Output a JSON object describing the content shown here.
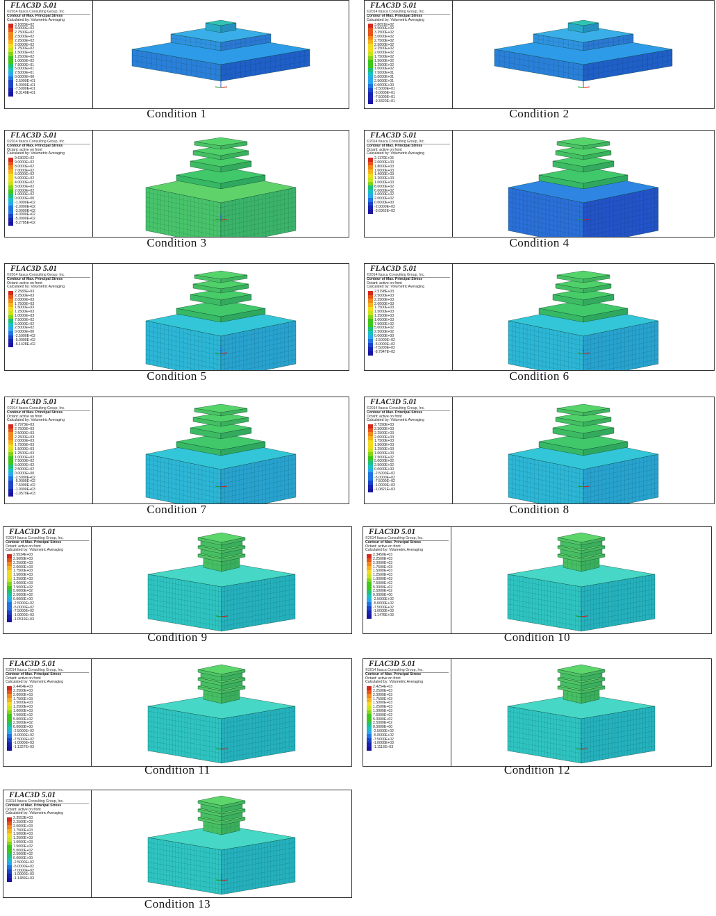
{
  "software_title": "FLAC3D 5.01",
  "copyright": "©2014 Itasca Consulting Group, Inc.",
  "contour_label": "Contour of Max. Principal Stress",
  "octant_label": "Octant: active on front",
  "averaging_label": "Calculated by: Volumetric Averaging",
  "colors": {
    "palette": [
      "#d42a1e",
      "#e8541a",
      "#f2891c",
      "#f7b21d",
      "#f2dc22",
      "#c8e41f",
      "#84d51d",
      "#3fc81c",
      "#1ec27a",
      "#19c0c4",
      "#2aa8ef",
      "#2274e2",
      "#1c43c8",
      "#1a22b0",
      "#1a14a0"
    ],
    "model_types": {
      "flat": "two-step podium model",
      "mid": "stepped excavation block with upper floors",
      "tall": "multi-storey frame on deep foundation block"
    }
  },
  "panels": [
    {
      "caption": "Condition 1",
      "model": "flat",
      "show_octant": false,
      "legend": [
        "3.1083E+02",
        "3.0000E+02",
        "2.7500E+02",
        "2.5000E+02",
        "2.2500E+02",
        "2.0000E+02",
        "1.7500E+02",
        "1.5000E+02",
        "1.2500E+02",
        "1.0000E+02",
        "7.5000E+01",
        "5.0000E+01",
        "2.5000E+01",
        "0.0000E+00",
        "-2.5000E+01",
        "-5.0000E+01",
        "-7.5000E+01",
        "-9.3140E+01"
      ]
    },
    {
      "caption": "Condition 2",
      "model": "flat",
      "show_octant": false,
      "legend": [
        "3.8091E+02",
        "3.5000E+02",
        "3.2500E+02",
        "3.0000E+02",
        "2.7500E+02",
        "2.5000E+02",
        "2.2500E+02",
        "2.0000E+02",
        "1.7500E+02",
        "1.5000E+02",
        "1.2500E+02",
        "1.0000E+02",
        "7.5000E+01",
        "5.0000E+01",
        "2.5000E+01",
        "0.0000E+00",
        "-2.5000E+01",
        "-5.0000E+01",
        "-7.5000E+01",
        "-9.3320E+01"
      ]
    },
    {
      "caption": "Condition 3",
      "model": "mid",
      "show_octant": true,
      "legend": [
        "9.6302E+02",
        "9.0000E+02",
        "8.0000E+02",
        "7.0000E+02",
        "6.0000E+02",
        "5.0000E+02",
        "4.0000E+02",
        "3.0000E+02",
        "2.0000E+02",
        "1.0000E+02",
        "0.0000E+00",
        "-1.0000E+02",
        "-2.0000E+02",
        "-3.0000E+02",
        "-4.0000E+02",
        "-5.0000E+02",
        "-5.2785E+02"
      ]
    },
    {
      "caption": "Condition 4",
      "model": "mid",
      "show_octant": true,
      "legend": [
        "2.1170E+03",
        "2.0000E+03",
        "1.8000E+03",
        "1.6000E+03",
        "1.4000E+03",
        "1.2000E+03",
        "1.0000E+03",
        "8.0000E+02",
        "6.0000E+02",
        "4.0000E+02",
        "2.0000E+02",
        "0.0000E+00",
        "-2.0000E+02",
        "-3.6962E+02"
      ]
    },
    {
      "caption": "Condition 5",
      "model": "mid",
      "show_octant": true,
      "legend": [
        "2.2583E+03",
        "2.2500E+03",
        "2.0000E+03",
        "1.7500E+03",
        "1.5000E+03",
        "1.2500E+03",
        "1.0000E+03",
        "7.5000E+02",
        "5.0000E+02",
        "2.5000E+02",
        "0.0000E+00",
        "-2.5000E+02",
        "-5.0000E+02",
        "-6.1428E+02"
      ]
    },
    {
      "caption": "Condition 6",
      "model": "mid",
      "show_octant": true,
      "legend": [
        "2.5198E+03",
        "2.5000E+03",
        "2.2500E+03",
        "2.0000E+03",
        "1.7500E+03",
        "1.5000E+03",
        "1.2500E+03",
        "1.0000E+03",
        "7.5000E+02",
        "5.0000E+02",
        "2.5000E+02",
        "0.0000E+00",
        "-2.5000E+02",
        "-5.0000E+02",
        "-7.5000E+02",
        "-8.7947E+02"
      ]
    },
    {
      "caption": "Condition 7",
      "model": "mid",
      "show_octant": true,
      "legend": [
        "2.7973E+03",
        "2.7500E+03",
        "2.5000E+03",
        "2.2500E+03",
        "2.0000E+03",
        "1.7500E+03",
        "1.5000E+03",
        "1.2500E+03",
        "1.0000E+03",
        "7.5000E+02",
        "5.0000E+02",
        "2.5000E+02",
        "0.0000E+00",
        "-2.5000E+02",
        "-5.0000E+02",
        "-7.5000E+02",
        "-1.0000E+03",
        "-1.0579E+03"
      ]
    },
    {
      "caption": "Condition 8",
      "model": "mid",
      "show_octant": true,
      "legend": [
        "2.7390E+03",
        "2.5000E+03",
        "2.2500E+03",
        "2.0000E+03",
        "1.7500E+03",
        "1.5000E+03",
        "1.2500E+03",
        "1.0000E+03",
        "7.5000E+02",
        "5.0000E+02",
        "2.5000E+02",
        "0.0000E+00",
        "-2.5000E+02",
        "-5.0000E+02",
        "-7.5000E+02",
        "-1.0000E+03",
        "-1.0821E+03"
      ]
    },
    {
      "caption": "Condition 9",
      "model": "tall",
      "show_octant": true,
      "legend": [
        "2.5534E+03",
        "2.5000E+03",
        "2.2500E+03",
        "2.0000E+03",
        "1.7500E+03",
        "1.5000E+03",
        "1.2500E+03",
        "1.0000E+03",
        "7.5000E+02",
        "5.0000E+02",
        "2.5000E+02",
        "0.0000E+00",
        "-2.5000E+02",
        "-5.0000E+02",
        "-7.5000E+02",
        "-1.0000E+03",
        "-1.0519E+03"
      ]
    },
    {
      "caption": "Condition 10",
      "model": "tall",
      "show_octant": true,
      "legend": [
        "2.3450E+03",
        "2.2500E+03",
        "2.0000E+03",
        "1.7500E+03",
        "1.5000E+03",
        "1.2500E+03",
        "1.0000E+03",
        "7.5000E+02",
        "5.0000E+02",
        "2.5000E+02",
        "0.0000E+00",
        "-2.5000E+02",
        "-5.0000E+02",
        "-7.5000E+02",
        "-1.0000E+03",
        "-1.1476E+03"
      ]
    },
    {
      "caption": "Condition 11",
      "model": "tall",
      "show_octant": true,
      "legend": [
        "2.4404E+03",
        "2.2500E+03",
        "2.0000E+03",
        "1.7500E+03",
        "1.5000E+03",
        "1.2500E+03",
        "1.0000E+03",
        "7.5000E+02",
        "5.0000E+02",
        "2.5000E+02",
        "0.0000E+00",
        "-2.5000E+02",
        "-5.0000E+02",
        "-7.5000E+02",
        "-1.0000E+03",
        "-1.1327E+03"
      ]
    },
    {
      "caption": "Condition 12",
      "model": "tall",
      "show_octant": true,
      "legend": [
        "2.4254E+03",
        "2.2500E+03",
        "2.0000E+03",
        "1.7500E+03",
        "1.5000E+03",
        "1.2500E+03",
        "1.0000E+03",
        "7.5000E+02",
        "5.0000E+02",
        "2.5000E+02",
        "0.0000E+00",
        "-2.5000E+02",
        "-5.0000E+02",
        "-7.5000E+02",
        "-1.0000E+03",
        "-1.1113E+03"
      ]
    },
    {
      "caption": "Condition 13",
      "model": "tall",
      "show_octant": true,
      "legend": [
        "2.3553E+03",
        "2.2500E+03",
        "2.0000E+03",
        "1.7500E+03",
        "1.5000E+03",
        "1.2500E+03",
        "1.0000E+03",
        "7.5000E+02",
        "5.0000E+02",
        "2.5000E+02",
        "0.0000E+00",
        "-2.5000E+02",
        "-5.0000E+02",
        "-7.0000E+02",
        "-1.0000E+03",
        "-1.1489E+03"
      ]
    }
  ]
}
